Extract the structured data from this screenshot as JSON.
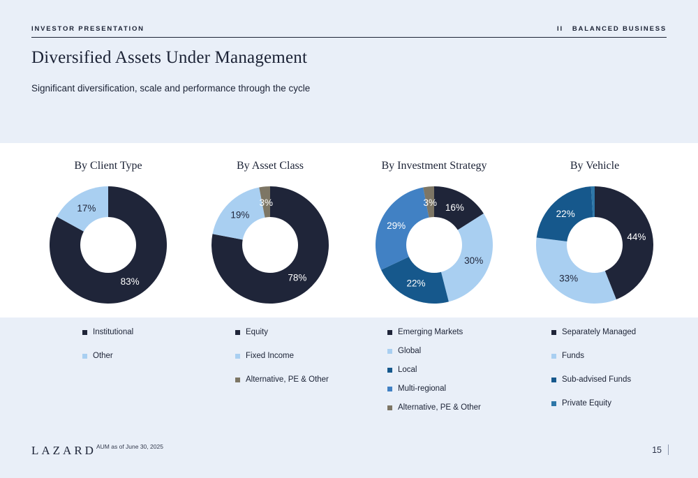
{
  "page": {
    "header_left": "INVESTOR PRESENTATION",
    "header_right_num": "II",
    "header_right_label": "BALANCED BUSINESS",
    "title": "Diversified Assets Under Management",
    "subtitle": "Significant diversification, scale and performance through the cycle",
    "footer": {
      "logo": "LAZARD",
      "note": "AUM as of June 30, 2025",
      "page_number": "15"
    }
  },
  "colors": {
    "background": "#e9eff8",
    "band": "#ffffff",
    "dark_navy": "#1f2539",
    "light_blue": "#a9cff1",
    "dark_blue": "#16588c",
    "medium_blue": "#4181c4",
    "olive_gray": "#7d7665",
    "teal_blue": "#2e77a8"
  },
  "chart_data": [
    {
      "type": "pie",
      "donut": true,
      "title": "By Client Type",
      "segments": [
        {
          "label": "Institutional",
          "value": 83,
          "text": "83%",
          "color": "#1f2539",
          "text_color": "#ffffff"
        },
        {
          "label": "Other",
          "value": 17,
          "text": "17%",
          "color": "#a9cff1",
          "text_color": "#1f2539"
        }
      ]
    },
    {
      "type": "pie",
      "donut": true,
      "title": "By Asset Class",
      "segments": [
        {
          "label": "Equity",
          "value": 78,
          "text": "78%",
          "color": "#1f2539",
          "text_color": "#ffffff"
        },
        {
          "label": "Fixed Income",
          "value": 19,
          "text": "19%",
          "color": "#a9cff1",
          "text_color": "#1f2539"
        },
        {
          "label": "Alternative, PE & Other",
          "value": 3,
          "text": "3%",
          "color": "#7d7665",
          "text_color": "#ffffff"
        }
      ]
    },
    {
      "type": "pie",
      "donut": true,
      "title": "By Investment Strategy",
      "segments": [
        {
          "label": "Emerging Markets",
          "value": 16,
          "text": "16%",
          "color": "#1f2539",
          "text_color": "#ffffff"
        },
        {
          "label": "Global",
          "value": 30,
          "text": "30%",
          "color": "#a9cff1",
          "text_color": "#1f2539"
        },
        {
          "label": "Local",
          "value": 22,
          "text": "22%",
          "color": "#16588c",
          "text_color": "#ffffff"
        },
        {
          "label": "Multi-regional",
          "value": 29,
          "text": "29%",
          "color": "#4181c4",
          "text_color": "#ffffff"
        },
        {
          "label": "Alternative, PE & Other",
          "value": 3,
          "text": "3%",
          "color": "#7d7665",
          "text_color": "#ffffff"
        }
      ]
    },
    {
      "type": "pie",
      "donut": true,
      "title": "By Vehicle",
      "segments": [
        {
          "label": "Separately Managed",
          "value": 44,
          "text": "44%",
          "color": "#1f2539",
          "text_color": "#ffffff"
        },
        {
          "label": "Funds",
          "value": 33,
          "text": "33%",
          "color": "#a9cff1",
          "text_color": "#1f2539"
        },
        {
          "label": "Sub-advised Funds",
          "value": 22,
          "text": "22%",
          "color": "#16588c",
          "text_color": "#ffffff"
        },
        {
          "label": "Private Equity",
          "value": 1,
          "text": "",
          "color": "#2e77a8",
          "text_color": "#ffffff"
        }
      ]
    }
  ]
}
